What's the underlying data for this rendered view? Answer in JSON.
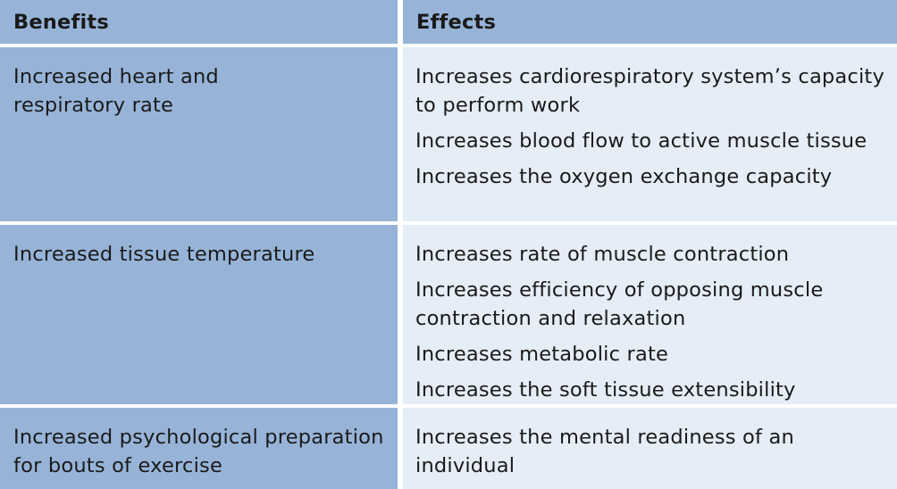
{
  "table": {
    "headers": {
      "benefits": "Benefits",
      "effects": "Effects"
    },
    "rows": [
      {
        "benefit": "Increased heart and\nrespiratory rate",
        "effects": [
          "Increases cardiorespiratory system’s capacity to perform work",
          "Increases blood flow to active muscle tissue",
          "Increases the oxygen exchange capacity"
        ]
      },
      {
        "benefit": "Increased tissue temperature",
        "effects": [
          "Increases rate of muscle contraction",
          "Increases efficiency of opposing muscle contraction and relaxation",
          "Increases metabolic rate",
          "Increases the soft tissue extensibility"
        ]
      },
      {
        "benefit": "Increased psychological preparation for bouts of exercise",
        "effects": [
          "Increases the mental readiness of an individual"
        ]
      }
    ]
  },
  "colors": {
    "header_bg": "#97b4d8",
    "benefit_bg": "#97b4d8",
    "effect_bg": "#e5edf7"
  }
}
